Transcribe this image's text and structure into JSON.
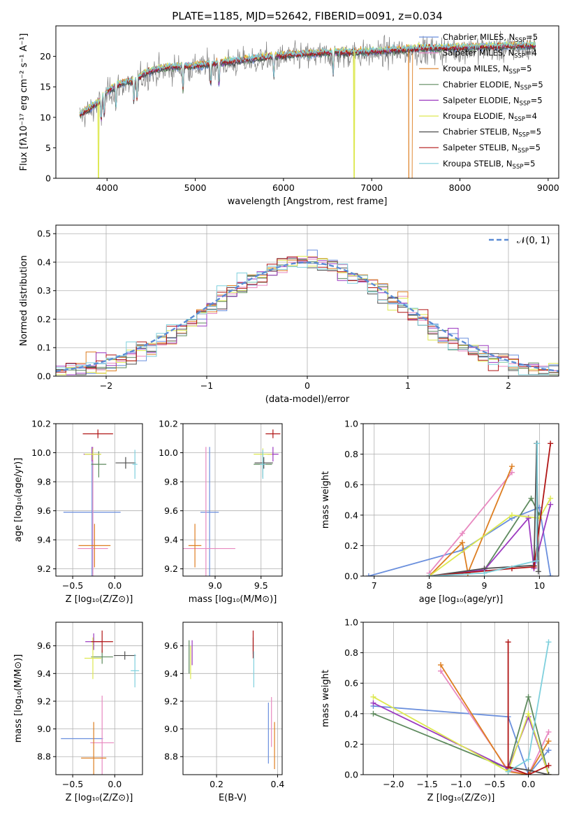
{
  "colors": {
    "Chabrier MILES": "#6a8fdd",
    "Salpeter MILES": "#e889c0",
    "Kroupa MILES": "#dd7e21",
    "Chabrier ELODIE": "#5e8a5e",
    "Salpeter ELODIE": "#9c3ac0",
    "Kroupa ELODIE": "#dde850",
    "Chabrier STELIB": "#4f4f4f",
    "Salpeter STELIB": "#b01515",
    "Kroupa STELIB": "#7fd0dd"
  },
  "chart_data": [
    {
      "id": "spectrum",
      "type": "line",
      "title": "PLATE=1185, MJD=52642, FIBERID=0091, z=0.034",
      "xlabel": "wavelength [Angstrom, rest frame]",
      "ylabel": "Flux [fλ10⁻¹⁷ erg cm⁻² s⁻¹ A⁻¹]",
      "xlim": [
        3420,
        9120
      ],
      "ylim": [
        0,
        25
      ],
      "xticks": [
        4000,
        5000,
        6000,
        7000,
        8000,
        9000
      ],
      "yticks": [
        0,
        5,
        10,
        15,
        20
      ],
      "legend_position": "upper right",
      "continuum": {
        "wavelength": [
          3700,
          3800,
          3900,
          4000,
          4100,
          4200,
          4300,
          4400,
          4500,
          4700,
          5000,
          5300,
          5600,
          6000,
          6500,
          7000,
          7500,
          8000,
          8500,
          8850
        ],
        "flux": [
          10.5,
          11.5,
          12.5,
          14.2,
          15.2,
          15.8,
          16.0,
          17.0,
          17.7,
          18.3,
          18.5,
          19.0,
          19.6,
          20.2,
          20.6,
          20.8,
          21.3,
          21.5,
          21.7,
          21.8
        ]
      },
      "series": [
        {
          "name": "Chabrier MILES",
          "legend": "Chabrier MILES, N",
          "nssp": "=5"
        },
        {
          "name": "Salpeter MILES",
          "legend": "Salpeter MILES, N",
          "nssp": "=4"
        },
        {
          "name": "Kroupa MILES",
          "legend": "Kroupa MILES, N",
          "nssp": "=5"
        },
        {
          "name": "Chabrier ELODIE",
          "legend": "Chabrier ELODIE, N",
          "nssp": "=5"
        },
        {
          "name": "Salpeter ELODIE",
          "legend": "Salpeter ELODIE, N",
          "nssp": "=5"
        },
        {
          "name": "Kroupa ELODIE",
          "legend": "Kroupa ELODIE, N",
          "nssp": "=4"
        },
        {
          "name": "Chabrier STELIB",
          "legend": "Chabrier STELIB, N",
          "nssp": "=5"
        },
        {
          "name": "Salpeter STELIB",
          "legend": "Salpeter STELIB, N",
          "nssp": "=5"
        },
        {
          "name": "Kroupa STELIB",
          "legend": "Kroupa STELIB, N",
          "nssp": "=5"
        }
      ],
      "legend_sub": "SSP"
    },
    {
      "id": "residuals",
      "type": "line",
      "xlabel": "(data-model)/error",
      "ylabel": "Normed distribution",
      "xlim": [
        -2.5,
        2.5
      ],
      "ylim": [
        0,
        0.53
      ],
      "xticks": [
        -2,
        -1,
        0,
        1,
        2
      ],
      "xtick_labels": [
        "−2",
        "−1",
        "0",
        "1",
        "2"
      ],
      "yticks": [
        0.0,
        0.1,
        0.2,
        0.3,
        0.4,
        0.5
      ],
      "ytick_labels": [
        "0.0",
        "0.1",
        "0.2",
        "0.3",
        "0.4",
        "0.5"
      ],
      "bin_width": 0.1,
      "histograms_shown": 9,
      "reference_curve": {
        "name": "N(0,1)",
        "legend": "𝒩(0, 1)",
        "style": "dashed",
        "color": "#5b8bd4"
      }
    },
    {
      "id": "age_vs_Z",
      "type": "scatter",
      "xlabel": "Z [log₁₀(Z/Z⊙)]",
      "ylabel": "age  [log₁₀(age/yr)]",
      "xlim": [
        -0.7,
        0.33
      ],
      "ylim": [
        9.15,
        10.2
      ],
      "xticks": [
        -0.5,
        0.0
      ],
      "xtick_labels": [
        "−0.5",
        "0.0"
      ],
      "yticks": [
        9.2,
        9.4,
        9.6,
        9.8,
        10.0,
        10.2
      ],
      "ytick_labels": [
        "9.2",
        "9.4",
        "9.6",
        "9.8",
        "10.0",
        "10.2"
      ],
      "points": [
        {
          "series": "Chabrier MILES",
          "x": -0.27,
          "y": 9.59,
          "xerr": 0.34,
          "yerr": 0.45
        },
        {
          "series": "Salpeter MILES",
          "x": -0.26,
          "y": 9.34,
          "xerr": 0.18,
          "yerr": 0.7
        },
        {
          "series": "Kroupa MILES",
          "x": -0.24,
          "y": 9.36,
          "xerr": 0.19,
          "yerr": 0.15
        },
        {
          "series": "Chabrier ELODIE",
          "x": -0.19,
          "y": 9.92,
          "xerr": 0.09,
          "yerr": 0.09
        },
        {
          "series": "Salpeter ELODIE",
          "x": -0.27,
          "y": 9.99,
          "xerr": 0.1,
          "yerr": 0.05
        },
        {
          "series": "Kroupa ELODIE",
          "x": -0.26,
          "y": 9.99,
          "xerr": 0.1,
          "yerr": 0.04
        },
        {
          "series": "Chabrier STELIB",
          "x": 0.13,
          "y": 9.93,
          "xerr": 0.12,
          "yerr": 0.04
        },
        {
          "series": "Salpeter STELIB",
          "x": -0.2,
          "y": 10.13,
          "xerr": 0.18,
          "yerr": 0.03
        },
        {
          "series": "Kroupa STELIB",
          "x": 0.24,
          "y": 9.92,
          "xerr": 0.03,
          "yerr": 0.1
        }
      ]
    },
    {
      "id": "age_vs_mass",
      "type": "scatter",
      "xlabel": "mass [log₁₀(M/M⊙)]",
      "ylabel": "",
      "xlim": [
        8.65,
        9.73
      ],
      "ylim": [
        9.15,
        10.2
      ],
      "xticks": [
        9.0,
        9.5
      ],
      "xtick_labels": [
        "9.0",
        "9.5"
      ],
      "yticks": [
        9.2,
        9.4,
        9.6,
        9.8,
        10.0,
        10.2
      ],
      "ytick_labels": [
        "9.2",
        "9.4",
        "9.6",
        "9.8",
        "10.0",
        "10.2"
      ],
      "points": [
        {
          "series": "Chabrier MILES",
          "x": 8.94,
          "y": 9.59,
          "xerr": 0.1,
          "yerr": 0.45
        },
        {
          "series": "Salpeter MILES",
          "x": 8.9,
          "y": 9.34,
          "xerr": 0.32,
          "yerr": 0.7
        },
        {
          "series": "Kroupa MILES",
          "x": 8.78,
          "y": 9.36,
          "xerr": 0.07,
          "yerr": 0.15
        },
        {
          "series": "Chabrier ELODIE",
          "x": 9.52,
          "y": 9.92,
          "xerr": 0.1,
          "yerr": 0.09
        },
        {
          "series": "Salpeter ELODIE",
          "x": 9.63,
          "y": 9.99,
          "xerr": 0.06,
          "yerr": 0.05
        },
        {
          "series": "Kroupa ELODIE",
          "x": 9.52,
          "y": 9.99,
          "xerr": 0.1,
          "yerr": 0.04
        },
        {
          "series": "Chabrier STELIB",
          "x": 9.53,
          "y": 9.93,
          "xerr": 0.1,
          "yerr": 0.04
        },
        {
          "series": "Salpeter STELIB",
          "x": 9.63,
          "y": 10.13,
          "xerr": 0.08,
          "yerr": 0.03
        },
        {
          "series": "Kroupa STELIB",
          "x": 9.52,
          "y": 9.92,
          "xerr": 0.03,
          "yerr": 0.1
        }
      ]
    },
    {
      "id": "weight_vs_age",
      "type": "line",
      "xlabel": "age  [log₁₀(age/yr)]",
      "ylabel": "mass weight",
      "xlim": [
        6.8,
        10.35
      ],
      "ylim": [
        0,
        1.0
      ],
      "xticks": [
        7,
        8,
        9,
        10
      ],
      "xtick_labels": [
        "7",
        "8",
        "9",
        "10"
      ],
      "yticks": [
        0.0,
        0.2,
        0.4,
        0.6,
        0.8,
        1.0
      ],
      "ytick_labels": [
        "0.0",
        "0.2",
        "0.4",
        "0.6",
        "0.8",
        "1.0"
      ],
      "series": [
        {
          "name": "Chabrier MILES",
          "x": [
            6.9,
            8.6,
            9.5,
            10.0,
            10.2
          ],
          "y": [
            0.0,
            0.17,
            0.38,
            0.45,
            0.0
          ]
        },
        {
          "name": "Salpeter MILES",
          "x": [
            8.0,
            8.6,
            9.5
          ],
          "y": [
            0.02,
            0.28,
            0.68
          ]
        },
        {
          "name": "Kroupa MILES",
          "x": [
            8.0,
            8.6,
            8.7,
            9.5
          ],
          "y": [
            0.0,
            0.22,
            0.02,
            0.72
          ]
        },
        {
          "name": "Chabrier ELODIE",
          "x": [
            8.0,
            9.0,
            9.85,
            10.0
          ],
          "y": [
            0.0,
            0.04,
            0.51,
            0.4
          ]
        },
        {
          "name": "Salpeter ELODIE",
          "x": [
            8.0,
            9.0,
            9.8,
            9.9,
            10.2
          ],
          "y": [
            0.0,
            0.04,
            0.38,
            0.05,
            0.47
          ]
        },
        {
          "name": "Kroupa ELODIE",
          "x": [
            8.0,
            9.5,
            10.0,
            10.2
          ],
          "y": [
            0.0,
            0.4,
            0.38,
            0.51
          ]
        },
        {
          "name": "Chabrier STELIB",
          "x": [
            8.0,
            9.0,
            9.9,
            9.95,
            9.98
          ],
          "y": [
            0.0,
            0.05,
            0.07,
            0.87,
            0.03
          ]
        },
        {
          "name": "Salpeter STELIB",
          "x": [
            8.0,
            9.5,
            9.9,
            10.2
          ],
          "y": [
            0.0,
            0.05,
            0.06,
            0.87
          ]
        },
        {
          "name": "Kroupa STELIB",
          "x": [
            8.0,
            9.0,
            9.95,
            9.96
          ],
          "y": [
            0.0,
            0.02,
            0.1,
            0.87
          ]
        }
      ]
    },
    {
      "id": "mass_vs_Z",
      "type": "scatter",
      "xlabel": "Z [log₁₀(Z/Z⊙)]",
      "ylabel": "mass [log₁₀(M/M⊙)]",
      "xlim": [
        -0.7,
        0.33
      ],
      "ylim": [
        8.67,
        9.77
      ],
      "xticks": [
        -0.5,
        0.0
      ],
      "xtick_labels": [
        "−0.5",
        "0.0"
      ],
      "yticks": [
        8.8,
        9.0,
        9.2,
        9.4,
        9.6
      ],
      "ytick_labels": [
        "8.8",
        "9.0",
        "9.2",
        "9.4",
        "9.6"
      ],
      "points": [
        {
          "series": "Chabrier MILES",
          "x": -0.39,
          "y": 8.93,
          "xerr": 0.25,
          "yerr": 0.0
        },
        {
          "series": "Salpeter MILES",
          "x": -0.15,
          "y": 8.9,
          "xerr": 0.14,
          "yerr": 0.34
        },
        {
          "series": "Kroupa MILES",
          "x": -0.25,
          "y": 8.79,
          "xerr": 0.15,
          "yerr": 0.26
        },
        {
          "series": "Chabrier ELODIE",
          "x": -0.15,
          "y": 9.52,
          "xerr": 0.13,
          "yerr": 0.05
        },
        {
          "series": "Salpeter ELODIE",
          "x": -0.25,
          "y": 9.63,
          "xerr": 0.1,
          "yerr": 0.06
        },
        {
          "series": "Kroupa ELODIE",
          "x": -0.26,
          "y": 9.51,
          "xerr": 0.1,
          "yerr": 0.15
        },
        {
          "series": "Chabrier STELIB",
          "x": 0.12,
          "y": 9.53,
          "xerr": 0.13,
          "yerr": 0.03
        },
        {
          "series": "Salpeter STELIB",
          "x": -0.15,
          "y": 9.63,
          "xerr": 0.13,
          "yerr": 0.08
        },
        {
          "series": "Kroupa STELIB",
          "x": 0.24,
          "y": 9.42,
          "xerr": 0.05,
          "yerr": 0.12
        }
      ]
    },
    {
      "id": "mass_vs_ebv",
      "type": "scatter",
      "xlabel": "E(B-V)",
      "ylabel": "",
      "xlim": [
        0.09,
        0.415
      ],
      "ylim": [
        8.67,
        9.77
      ],
      "xticks": [
        0.2,
        0.4
      ],
      "xtick_labels": [
        "0.2",
        "0.4"
      ],
      "yticks": [
        8.8,
        9.0,
        9.2,
        9.4,
        9.6
      ],
      "ytick_labels": [
        "8.8",
        "9.0",
        "9.2",
        "9.4",
        "9.6"
      ],
      "points": [
        {
          "series": "Chabrier MILES",
          "x": 0.37,
          "y": 8.97,
          "xerr": 0.0,
          "yerr": 0.22
        },
        {
          "series": "Salpeter MILES",
          "x": 0.38,
          "y": 9.05,
          "xerr": 0.0,
          "yerr": 0.18
        },
        {
          "series": "Kroupa MILES",
          "x": 0.39,
          "y": 8.88,
          "xerr": 0.0,
          "yerr": 0.17
        },
        {
          "series": "Chabrier ELODIE",
          "x": 0.11,
          "y": 9.52,
          "xerr": 0.0,
          "yerr": 0.12
        },
        {
          "series": "Salpeter ELODIE",
          "x": 0.12,
          "y": 9.55,
          "xerr": 0.0,
          "yerr": 0.09
        },
        {
          "series": "Kroupa ELODIE",
          "x": 0.115,
          "y": 9.48,
          "xerr": 0.0,
          "yerr": 0.12
        },
        {
          "series": "Chabrier STELIB",
          "x": 0.32,
          "y": 9.6,
          "xerr": 0.0,
          "yerr": 0.06
        },
        {
          "series": "Salpeter STELIB",
          "x": 0.32,
          "y": 9.61,
          "xerr": 0.0,
          "yerr": 0.1
        },
        {
          "series": "Kroupa STELIB",
          "x": 0.322,
          "y": 9.43,
          "xerr": 0.0,
          "yerr": 0.13
        }
      ]
    },
    {
      "id": "weight_vs_Z",
      "type": "line",
      "xlabel": "Z [log₁₀(Z/Z⊙)]",
      "ylabel": "mass weight",
      "xlim": [
        -2.45,
        0.45
      ],
      "ylim": [
        0,
        1.0
      ],
      "xticks": [
        -2.0,
        -1.5,
        -1.0,
        -0.5,
        0.0
      ],
      "xtick_labels": [
        "−2.0",
        "−1.5",
        "−1.0",
        "−0.5",
        "0.0"
      ],
      "yticks": [
        0.0,
        0.2,
        0.4,
        0.6,
        0.8,
        1.0
      ],
      "ytick_labels": [
        "0.0",
        "0.2",
        "0.4",
        "0.6",
        "0.8",
        "1.0"
      ],
      "series": [
        {
          "name": "Chabrier MILES",
          "x": [
            -2.3,
            -0.3,
            0.0,
            0.3
          ],
          "y": [
            0.45,
            0.38,
            0.0,
            0.16
          ]
        },
        {
          "name": "Salpeter MILES",
          "x": [
            -1.3,
            -0.3,
            0.0,
            0.3
          ],
          "y": [
            0.68,
            0.03,
            0.0,
            0.28
          ]
        },
        {
          "name": "Kroupa MILES",
          "x": [
            -1.3,
            -0.3,
            0.0,
            0.3
          ],
          "y": [
            0.72,
            0.02,
            0.0,
            0.22
          ]
        },
        {
          "name": "Chabrier ELODIE",
          "x": [
            -2.3,
            -0.3,
            0.0,
            0.3
          ],
          "y": [
            0.4,
            0.04,
            0.51,
            0.0
          ]
        },
        {
          "name": "Salpeter ELODIE",
          "x": [
            -2.3,
            -0.3,
            0.0,
            0.3
          ],
          "y": [
            0.47,
            0.04,
            0.38,
            0.0
          ]
        },
        {
          "name": "Kroupa ELODIE",
          "x": [
            -2.3,
            -0.3,
            0.0,
            0.3
          ],
          "y": [
            0.51,
            0.02,
            0.4,
            0.0
          ]
        },
        {
          "name": "Chabrier STELIB",
          "x": [
            -0.3,
            0.0,
            0.3
          ],
          "y": [
            0.05,
            0.03,
            0.0
          ]
        },
        {
          "name": "Salpeter STELIB",
          "x": [
            -0.3,
            -0.3,
            0.0,
            0.3
          ],
          "y": [
            0.87,
            0.05,
            0.0,
            0.06
          ]
        },
        {
          "name": "Kroupa STELIB",
          "x": [
            -0.3,
            0.0,
            0.3
          ],
          "y": [
            0.02,
            0.1,
            0.87
          ]
        }
      ]
    }
  ]
}
